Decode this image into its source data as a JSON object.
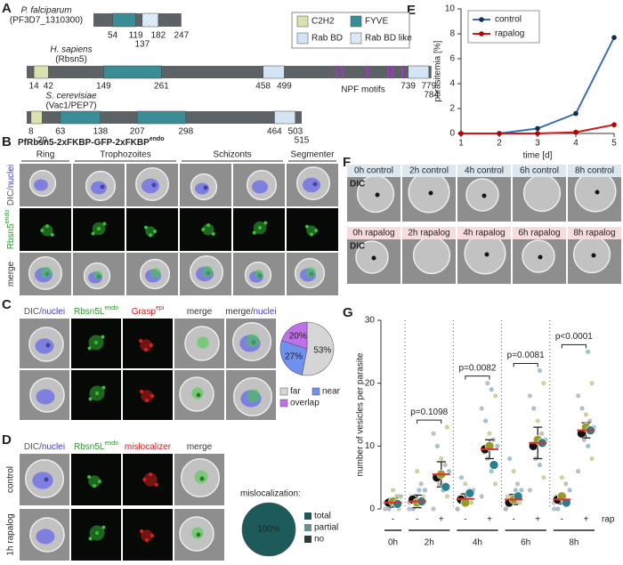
{
  "panel_labels": [
    "A",
    "B",
    "C",
    "D",
    "E",
    "F",
    "G"
  ],
  "A": {
    "legend": [
      {
        "name": "C2H2",
        "color": "#d9e2ae"
      },
      {
        "name": "FYVE",
        "color": "#3b8d95"
      },
      {
        "name": "Rab BD",
        "color": "#d3e5f5"
      },
      {
        "name": "Rab BD like",
        "color": "#d3e5f5",
        "hatched": true
      }
    ],
    "proteins": [
      {
        "species": "P. falciparum",
        "id": "(PF3D7_1310300)",
        "length": 247,
        "domains": [
          {
            "type": "FYVE",
            "start": 54,
            "end": 119
          },
          {
            "type": "Rab BD like",
            "start": 137,
            "end": 182
          }
        ]
      },
      {
        "species": "H. sapiens",
        "id": "(Rbsn5)",
        "length": 784,
        "domains": [
          {
            "type": "C2H2",
            "start": 14,
            "end": 42
          },
          {
            "type": "FYVE",
            "start": 149,
            "end": 261
          },
          {
            "type": "Rab BD",
            "start": 458,
            "end": 499
          },
          {
            "type": "Rab BD",
            "start": 739,
            "end": 779
          }
        ],
        "motifs": {
          "label": "NPF motifs",
          "color": "#b030d0",
          "positions": [
            600,
            612,
            660,
            700,
            708,
            728
          ]
        }
      },
      {
        "species": "S. cerevisiae",
        "id": "(Vac1/PEP7)",
        "length": 515,
        "domains": [
          {
            "type": "C2H2",
            "start": 8,
            "end": 29
          },
          {
            "type": "FYVE",
            "start": 63,
            "end": 138
          },
          {
            "type": "FYVE",
            "start": 207,
            "end": 298
          },
          {
            "type": "Rab BD",
            "start": 464,
            "end": 503
          }
        ]
      }
    ]
  },
  "B": {
    "title": [
      {
        "text": "PfRbsn5-2xFKBP-GFP-2xFKBP"
      },
      {
        "text": "endo",
        "sup": true
      }
    ],
    "columns": [
      "Ring",
      "Trophozoites",
      "Schizonts",
      "Segmenter"
    ],
    "rows": [
      [
        {
          "text": "DIC/",
          "color": "#555555"
        },
        {
          "text": "nuclei",
          "color": "#3a3ad8"
        }
      ],
      [
        {
          "text": "Rbsn5",
          "color": "#2a9a2a"
        },
        {
          "text": "endo",
          "color": "#2a9a2a",
          "sup": true
        }
      ],
      [
        {
          "text": "merge",
          "color": "#333333"
        }
      ]
    ]
  },
  "C": {
    "columns": [
      [
        {
          "text": "DIC/",
          "color": "#555555"
        },
        {
          "text": "nuclei",
          "color": "#3a3ad8"
        }
      ],
      [
        {
          "text": "Rbsn5L",
          "color": "#2a9a2a"
        },
        {
          "text": "endo",
          "color": "#2a9a2a",
          "sup": true
        }
      ],
      [
        {
          "text": "Grasp",
          "color": "#d02020"
        },
        {
          "text": "epi",
          "color": "#d02020",
          "sup": true
        }
      ],
      [
        {
          "text": "merge",
          "color": "#333333"
        }
      ],
      [
        {
          "text": "merge/",
          "color": "#333333"
        },
        {
          "text": "nuclei",
          "color": "#3a3ad8"
        }
      ]
    ],
    "pie": {
      "values": [
        53,
        27,
        20
      ],
      "value_labels": [
        "53%",
        "27%",
        "20%"
      ],
      "labels": [
        "far",
        "near",
        "overlap"
      ],
      "colors": [
        "#d6d6d6",
        "#7090f0",
        "#c070e8"
      ]
    }
  },
  "D": {
    "columns": [
      [
        {
          "text": "DIC/",
          "color": "#555555"
        },
        {
          "text": "nuclei",
          "color": "#3a3ad8"
        }
      ],
      [
        {
          "text": "Rbsn5L",
          "color": "#2a9a2a"
        },
        {
          "text": "endo",
          "color": "#2a9a2a",
          "sup": true
        }
      ],
      [
        {
          "text": "mislocalizer",
          "color": "#d02020"
        }
      ],
      [
        {
          "text": "merge",
          "color": "#333333"
        }
      ]
    ],
    "rows": [
      "control",
      "1h rapalog"
    ],
    "pie": {
      "title": "mislocalization:",
      "values": [
        100,
        0,
        0
      ],
      "value_labels": [
        "100%",
        null,
        null
      ],
      "labels": [
        "total",
        "partial",
        "no"
      ],
      "colors": [
        "#1d5b5b",
        "#6a8f8f",
        "#2b3b3b"
      ]
    }
  },
  "F": {
    "rows": [
      {
        "dic": "DIC",
        "labels": [
          "0h control",
          "2h control",
          "4h control",
          "6h control",
          "8h control"
        ]
      },
      {
        "dic": "DIC",
        "labels": [
          "0h rapalog",
          "2h rapalog",
          "4h rapalog",
          "6h rapalog",
          "8h rapalog"
        ]
      }
    ]
  },
  "chart_data": [
    {
      "type": "line",
      "x": [
        1,
        2,
        3,
        4,
        5
      ],
      "xlim": [
        1,
        5
      ],
      "xticks": [
        1,
        2,
        3,
        4,
        5
      ],
      "ylim": [
        0,
        10
      ],
      "yticks": [
        0,
        2,
        4,
        6,
        8,
        10
      ],
      "xlabel": "time [d]",
      "ylabel": "parasitemia [%]",
      "legend": "upper left",
      "series": [
        {
          "name": "control",
          "color": "#3a6fb5",
          "marker_color": "#1a2a4a",
          "values": [
            0,
            0,
            0.4,
            1.6,
            7.7
          ]
        },
        {
          "name": "rapalog",
          "color": "#d01818",
          "marker_color": "#b00000",
          "values": [
            0,
            0,
            0,
            0.1,
            0.7
          ]
        }
      ]
    },
    {
      "type": "strip",
      "ylabel": "number of vesicles per parasite",
      "ylim": [
        0,
        30
      ],
      "yticks": [
        0,
        10,
        20,
        30
      ],
      "treatment_label": "rap",
      "replicate_colors": [
        "#111111",
        "#9a9a2a",
        "#2a7f8a"
      ],
      "point_colors": [
        "#b5b5b5",
        "#c8c890",
        "#8fb8c8"
      ],
      "mean_color": "#e0302a",
      "groups": [
        {
          "label": "0h",
          "conditions": [
            {
              "label": "-",
              "mean": 1,
              "sd": 0.7,
              "replicate_means": [
                1.0,
                1.2,
                0.8
              ],
              "points": [
                0,
                0,
                1,
                1,
                1,
                2,
                2,
                3,
                0,
                1,
                2,
                1
              ]
            }
          ]
        },
        {
          "label": "2h",
          "p": "p=0.1098",
          "conditions": [
            {
              "label": "-",
              "mean": 1.2,
              "sd": 1,
              "replicate_means": [
                1.5,
                1.0,
                1.2
              ],
              "points": [
                0,
                1,
                1,
                2,
                2,
                3,
                4,
                6,
                0,
                1,
                2,
                3
              ]
            },
            {
              "label": "+",
              "mean": 5.5,
              "sd": 2,
              "replicate_means": [
                5,
                5.5,
                3.5
              ],
              "points": [
                0,
                2,
                3,
                4,
                5,
                6,
                7,
                8,
                10,
                12,
                13,
                3
              ]
            }
          ]
        },
        {
          "label": "4h",
          "p": "p=0.0082",
          "conditions": [
            {
              "label": "-",
              "mean": 1.6,
              "sd": 0.8,
              "replicate_means": [
                1.5,
                1,
                2.5
              ],
              "points": [
                0,
                1,
                1,
                2,
                2,
                3,
                3,
                4,
                5,
                0,
                1,
                2
              ]
            },
            {
              "label": "+",
              "mean": 9.5,
              "sd": 1.5,
              "replicate_means": [
                9.5,
                10,
                7
              ],
              "points": [
                2,
                4,
                6,
                8,
                9,
                10,
                11,
                12,
                14,
                16,
                18,
                19,
                20
              ]
            }
          ]
        },
        {
          "label": "6h",
          "p": "p=0.0081",
          "conditions": [
            {
              "label": "-",
              "mean": 1.5,
              "sd": 0.8,
              "replicate_means": [
                1,
                1.5,
                2
              ],
              "points": [
                0,
                1,
                1,
                2,
                2,
                3,
                4,
                6,
                8,
                0,
                2,
                3
              ]
            },
            {
              "label": "+",
              "mean": 10.5,
              "sd": 2.5,
              "replicate_means": [
                10,
                11,
                10.5
              ],
              "points": [
                3,
                5,
                7,
                8,
                10,
                11,
                12,
                14,
                16,
                18,
                20,
                22
              ]
            }
          ]
        },
        {
          "label": "8h",
          "p": "p<0.0001",
          "conditions": [
            {
              "label": "-",
              "mean": 1.5,
              "sd": 0.7,
              "replicate_means": [
                1.5,
                2,
                1
              ],
              "points": [
                0,
                1,
                1,
                2,
                2,
                3,
                4,
                5,
                0,
                1
              ]
            },
            {
              "label": "+",
              "mean": 12.5,
              "sd": 1.2,
              "replicate_means": [
                12,
                13,
                12.5
              ],
              "points": [
                6,
                8,
                10,
                11,
                12,
                13,
                14,
                15,
                16,
                18,
                20,
                25
              ]
            }
          ]
        }
      ]
    }
  ]
}
